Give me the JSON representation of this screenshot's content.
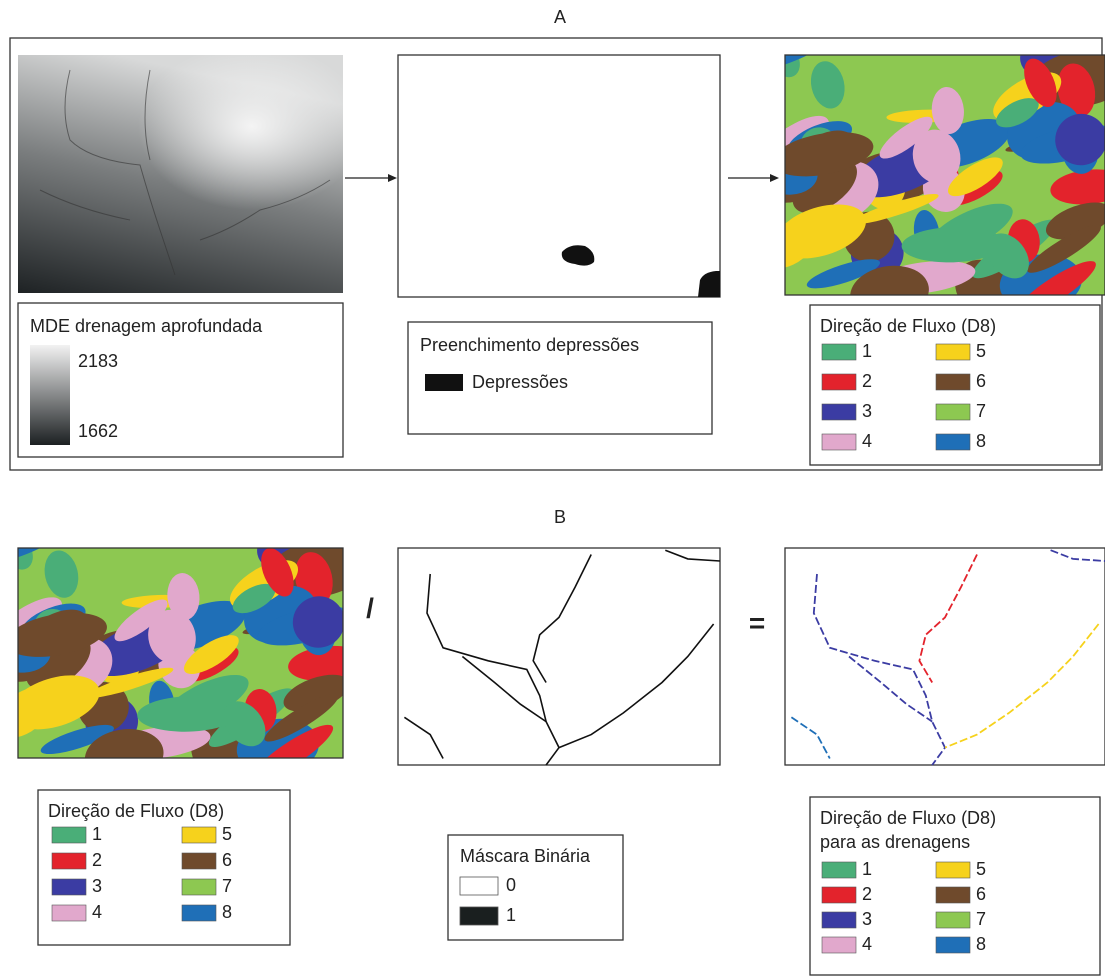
{
  "panel_a": {
    "label": "A",
    "dem_legend": {
      "title": "MDE drenagem aprofundada",
      "max": 2183,
      "min": 1662
    },
    "fill_legend": {
      "title": "Preenchimento depressões",
      "item": "Depressões"
    },
    "flow_legend": {
      "title": "Direção de Fluxo (D8)",
      "items": [
        {
          "label": "1",
          "color": "#4aae78"
        },
        {
          "label": "2",
          "color": "#e3232c"
        },
        {
          "label": "3",
          "color": "#3b3ca3"
        },
        {
          "label": "4",
          "color": "#e1a8cc"
        },
        {
          "label": "5",
          "color": "#f6d21c"
        },
        {
          "label": "6",
          "color": "#6f4a2c"
        },
        {
          "label": "7",
          "color": "#8dc851"
        },
        {
          "label": "8",
          "color": "#1f6fb7"
        }
      ]
    }
  },
  "panel_b": {
    "label": "B",
    "operator_divide": "/",
    "operator_equals": "=",
    "flow_legend": {
      "title": "Direção de Fluxo (D8)",
      "items": [
        {
          "label": "1",
          "color": "#4aae78"
        },
        {
          "label": "2",
          "color": "#e3232c"
        },
        {
          "label": "3",
          "color": "#3b3ca3"
        },
        {
          "label": "4",
          "color": "#e1a8cc"
        },
        {
          "label": "5",
          "color": "#f6d21c"
        },
        {
          "label": "6",
          "color": "#6f4a2c"
        },
        {
          "label": "7",
          "color": "#8dc851"
        },
        {
          "label": "8",
          "color": "#1f6fb7"
        }
      ]
    },
    "mask_legend": {
      "title": "Máscara Binária",
      "items": [
        {
          "label": "0",
          "color": "#ffffff"
        },
        {
          "label": "1",
          "color": "#1a1f1f"
        }
      ]
    },
    "drainage_legend": {
      "title": "Direção de Fluxo (D8)",
      "subtitle": "para as drenagens",
      "items": [
        {
          "label": "1",
          "color": "#4aae78"
        },
        {
          "label": "2",
          "color": "#e3232c"
        },
        {
          "label": "3",
          "color": "#3b3ca3"
        },
        {
          "label": "4",
          "color": "#e1a8cc"
        },
        {
          "label": "5",
          "color": "#f6d21c"
        },
        {
          "label": "6",
          "color": "#6f4a2c"
        },
        {
          "label": "7",
          "color": "#8dc851"
        },
        {
          "label": "8",
          "color": "#1f6fb7"
        }
      ]
    }
  }
}
